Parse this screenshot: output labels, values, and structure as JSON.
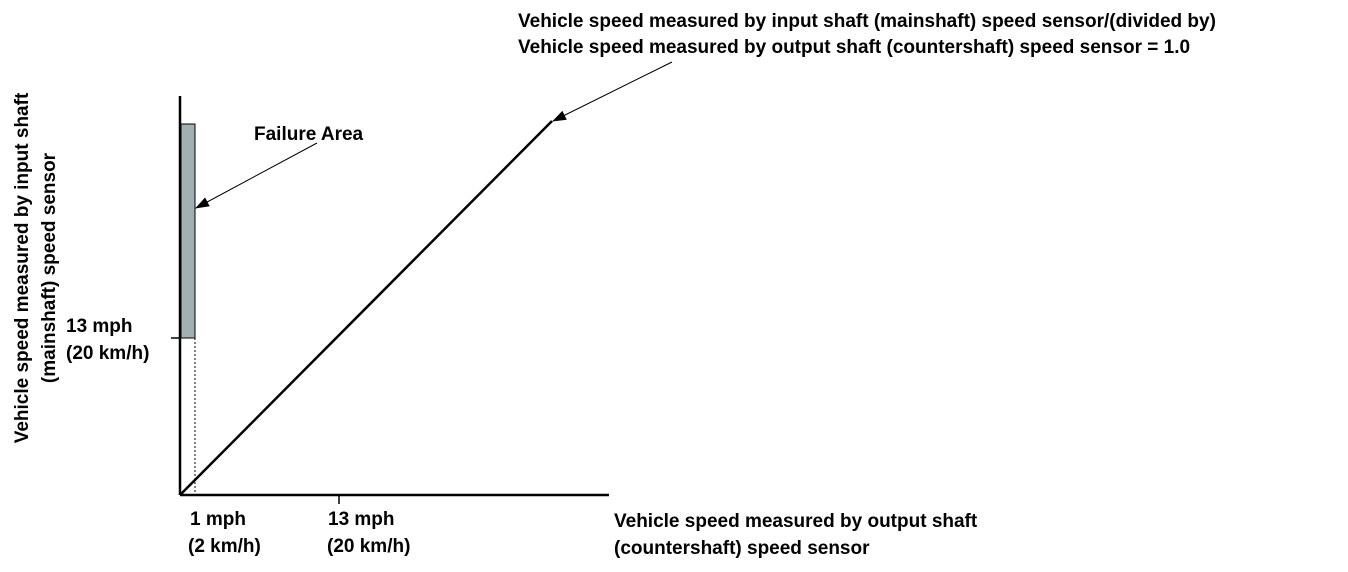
{
  "ratio_annotation": {
    "line1": "Vehicle speed measured by input shaft (mainshaft) speed sensor/(divided by)",
    "line2": "Vehicle speed measured by output shaft (countershaft) speed sensor = 1.0"
  },
  "failure_area": {
    "label": "Failure Area"
  },
  "y_axis": {
    "title_line1": "Vehicle speed measured by input shaft",
    "title_line2": "(mainshaft) speed sensor",
    "tick_13": {
      "line1": "13 mph",
      "line2": "(20 km/h)"
    }
  },
  "x_axis": {
    "title_line1": "Vehicle speed measured by output shaft",
    "title_line2": "(countershaft) speed sensor",
    "tick_1": {
      "line1": "1 mph",
      "line2": "(2 km/h)"
    },
    "tick_13": {
      "line1": "13 mph",
      "line2": "(20 km/h)"
    }
  },
  "colors": {
    "failure_fill": "#a2b0b3",
    "ink": "#000000",
    "background": "#ffffff"
  }
}
